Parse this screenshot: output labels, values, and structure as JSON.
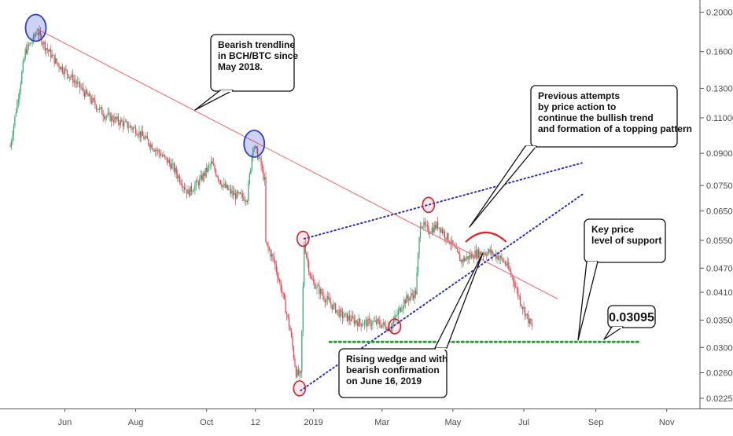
{
  "chart_data": {
    "type": "candlestick",
    "pair": "BCH/BTC",
    "colors": {
      "up": "#33a66b",
      "down": "#e0404f",
      "trendline": "#f07070",
      "wedge": "#2b2fc4",
      "support": "#2a9c3a",
      "circle_blue": "#2e3ccc",
      "circle_red": "#d81f2e",
      "arc": "#e0202a",
      "axis_text": "#4a4a4a"
    },
    "x_axis": {
      "ticks": [
        "Jun",
        "Aug",
        "Oct",
        "12",
        "2019",
        "Mar",
        "May",
        "Jul",
        "Sep",
        "Nov"
      ]
    },
    "y_axis": {
      "scale": "log",
      "ticks": [
        "0.20000",
        "0.16000",
        "0.13000",
        "0.11000",
        "0.09000",
        "0.07500",
        "0.06500",
        "0.05500",
        "0.04700",
        "0.04100",
        "0.03500",
        "0.03000",
        "0.02600",
        "0.02250"
      ]
    },
    "price_anchors": [
      {
        "date": "2018-04-15",
        "price": 0.0935
      },
      {
        "date": "2018-04-22",
        "price": 0.125
      },
      {
        "date": "2018-04-28",
        "price": 0.16
      },
      {
        "date": "2018-05-05",
        "price": 0.172
      },
      {
        "date": "2018-05-08",
        "price": 0.18
      },
      {
        "date": "2018-05-15",
        "price": 0.165
      },
      {
        "date": "2018-05-25",
        "price": 0.15
      },
      {
        "date": "2018-06-05",
        "price": 0.14
      },
      {
        "date": "2018-06-20",
        "price": 0.125
      },
      {
        "date": "2018-07-05",
        "price": 0.112
      },
      {
        "date": "2018-07-20",
        "price": 0.107
      },
      {
        "date": "2018-08-01",
        "price": 0.103
      },
      {
        "date": "2018-08-15",
        "price": 0.094
      },
      {
        "date": "2018-09-01",
        "price": 0.084
      },
      {
        "date": "2018-09-15",
        "price": 0.072
      },
      {
        "date": "2018-09-25",
        "price": 0.077
      },
      {
        "date": "2018-10-05",
        "price": 0.085
      },
      {
        "date": "2018-10-15",
        "price": 0.075
      },
      {
        "date": "2018-10-25",
        "price": 0.071
      },
      {
        "date": "2018-11-05",
        "price": 0.07
      },
      {
        "date": "2018-11-10",
        "price": 0.095
      },
      {
        "date": "2018-11-16",
        "price": 0.086
      },
      {
        "date": "2018-11-20",
        "price": 0.077
      },
      {
        "date": "2018-11-21",
        "price": 0.054
      },
      {
        "date": "2018-11-28",
        "price": 0.049
      },
      {
        "date": "2018-12-05",
        "price": 0.041
      },
      {
        "date": "2018-12-12",
        "price": 0.033
      },
      {
        "date": "2018-12-17",
        "price": 0.026
      },
      {
        "date": "2018-12-21",
        "price": 0.0255
      },
      {
        "date": "2018-12-24",
        "price": 0.054
      },
      {
        "date": "2018-12-30",
        "price": 0.044
      },
      {
        "date": "2019-01-10",
        "price": 0.04
      },
      {
        "date": "2019-01-25",
        "price": 0.036
      },
      {
        "date": "2019-02-10",
        "price": 0.0345
      },
      {
        "date": "2019-02-25",
        "price": 0.0345
      },
      {
        "date": "2019-03-08",
        "price": 0.0335
      },
      {
        "date": "2019-03-20",
        "price": 0.039
      },
      {
        "date": "2019-03-30",
        "price": 0.041
      },
      {
        "date": "2019-04-03",
        "price": 0.061
      },
      {
        "date": "2019-04-10",
        "price": 0.058
      },
      {
        "date": "2019-04-18",
        "price": 0.06
      },
      {
        "date": "2019-04-28",
        "price": 0.055
      },
      {
        "date": "2019-05-08",
        "price": 0.049
      },
      {
        "date": "2019-05-20",
        "price": 0.051
      },
      {
        "date": "2019-06-01",
        "price": 0.0515
      },
      {
        "date": "2019-06-10",
        "price": 0.05
      },
      {
        "date": "2019-06-16",
        "price": 0.048
      },
      {
        "date": "2019-06-22",
        "price": 0.044
      },
      {
        "date": "2019-06-28",
        "price": 0.039
      },
      {
        "date": "2019-07-08",
        "price": 0.0335
      }
    ],
    "trendline": {
      "from": {
        "date": "2018-05-08",
        "price": 0.182
      },
      "to": {
        "date": "2019-07-30",
        "price": 0.0395
      }
    },
    "wedge_upper": {
      "from": {
        "date": "2018-12-24",
        "price": 0.0555
      },
      "to": {
        "date": "2019-08-20",
        "price": 0.0852
      }
    },
    "wedge_lower": {
      "from": {
        "date": "2018-12-21",
        "price": 0.0235
      },
      "to": {
        "date": "2019-08-22",
        "price": 0.0718
      }
    },
    "support": {
      "price": 0.03095,
      "from": "2019-01-15",
      "to": "2019-10-10"
    },
    "blue_circles": [
      {
        "date": "2018-05-07",
        "price": 0.183
      },
      {
        "date": "2018-11-11",
        "price": 0.095
      }
    ],
    "red_circles": [
      {
        "date": "2018-12-23",
        "price": 0.0555
      },
      {
        "date": "2019-04-10",
        "price": 0.0672
      },
      {
        "date": "2018-12-20",
        "price": 0.0238
      },
      {
        "date": "2019-03-12",
        "price": 0.0338
      }
    ],
    "topping_arc": {
      "from": "2019-05-12",
      "to": "2019-06-16",
      "peak_price": 0.0575,
      "end_price": 0.0545
    },
    "annotations": [
      {
        "id": "trendline-note",
        "lines": [
          "Bearish trendline",
          "in BCH/BTC since",
          "May 2018."
        ]
      },
      {
        "id": "topping-note",
        "lines": [
          "Previous attempts",
          "by price action to",
          "continue the bullish trend",
          "and formation of a topping pattern"
        ]
      },
      {
        "id": "support-note",
        "lines": [
          "Key price",
          "level of support"
        ]
      },
      {
        "id": "wedge-note",
        "lines": [
          "Rising wedge and with",
          "bearish confirmation",
          "on June 16, 2019"
        ]
      },
      {
        "id": "price-label",
        "lines": [
          "0.03095"
        ]
      }
    ]
  }
}
